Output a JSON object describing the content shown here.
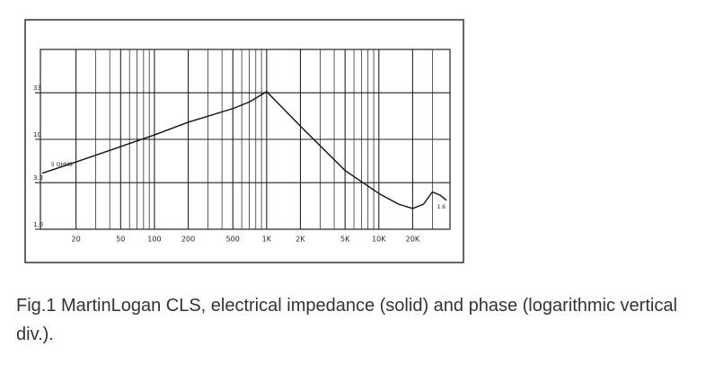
{
  "chart_data": {
    "type": "line",
    "x": [
      10,
      20,
      50,
      100,
      200,
      500,
      700,
      1000,
      2000,
      5000,
      10000,
      15000,
      20000,
      25000,
      30000,
      35000,
      40000
    ],
    "series": [
      {
        "name": "Impedance",
        "color": "#111111",
        "values": [
          4.2,
          5.6,
          8.3,
          11.2,
          15.5,
          22,
          26,
          34,
          14,
          4.5,
          2.5,
          1.9,
          1.7,
          1.9,
          2.6,
          2.4,
          2.1
        ]
      }
    ],
    "xlim": [
      10,
      40000
    ],
    "ylim": [
      1,
      100
    ],
    "xscale": "log",
    "yscale": "log",
    "xticks": [
      20,
      50,
      100,
      200,
      500,
      {
        "value": 1000,
        "label": "1K"
      },
      {
        "value": 2000,
        "label": "2K"
      },
      {
        "value": 5000,
        "label": "5K"
      },
      {
        "value": 10000,
        "label": "10K"
      },
      {
        "value": 20000,
        "label": "20K"
      }
    ],
    "xminor": [
      30,
      40,
      60,
      70,
      80,
      90,
      300,
      400,
      600,
      700,
      800,
      900,
      3000,
      4000,
      6000,
      7000,
      8000,
      9000,
      30000
    ],
    "yticks": [
      {
        "value": 1,
        "label": "1.0"
      },
      3.3,
      10,
      33
    ],
    "grid": true,
    "annotations": [
      {
        "text": "5 OHMS",
        "x": 12,
        "y": 5.2
      },
      {
        "text": "1.6",
        "x": 33000,
        "y": 1.75
      }
    ]
  },
  "caption": "Fig.1 MartinLogan CLS, electrical impedance (solid) and phase (logarithmic vertical div.)."
}
